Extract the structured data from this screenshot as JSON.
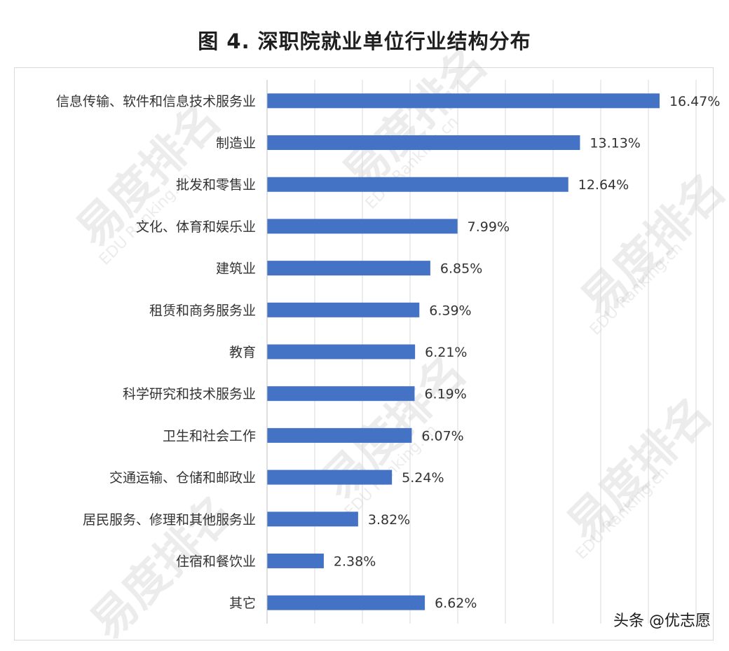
{
  "chart_data": {
    "type": "bar",
    "orientation": "horizontal",
    "title": "图 4. 深职院就业单位行业结构分布",
    "categories": [
      "信息传输、软件和信息技术服务业",
      "制造业",
      "批发和零售业",
      "文化、体育和娱乐业",
      "建筑业",
      "租赁和商务服务业",
      "教育",
      "科学研究和技术服务业",
      "卫生和社会工作",
      "交通运输、仓储和邮政业",
      "居民服务、修理和其他服务业",
      "住宿和餐饮业",
      "其它"
    ],
    "values": [
      16.47,
      13.13,
      12.64,
      7.99,
      6.85,
      6.39,
      6.21,
      6.19,
      6.07,
      5.24,
      3.82,
      2.38,
      6.62
    ],
    "value_labels": [
      "16.47%",
      "13.13%",
      "12.64%",
      "7.99%",
      "6.85%",
      "6.39%",
      "6.21%",
      "6.19%",
      "6.07%",
      "5.24%",
      "3.82%",
      "2.38%",
      "6.62%"
    ],
    "xlim": [
      0,
      18
    ],
    "grid": true,
    "legend": "none",
    "bar_color": "#4472c4"
  },
  "watermark": {
    "main": "易度排名",
    "sub": "EDU Ranking.cn"
  },
  "credit": "头条 @优志愿"
}
